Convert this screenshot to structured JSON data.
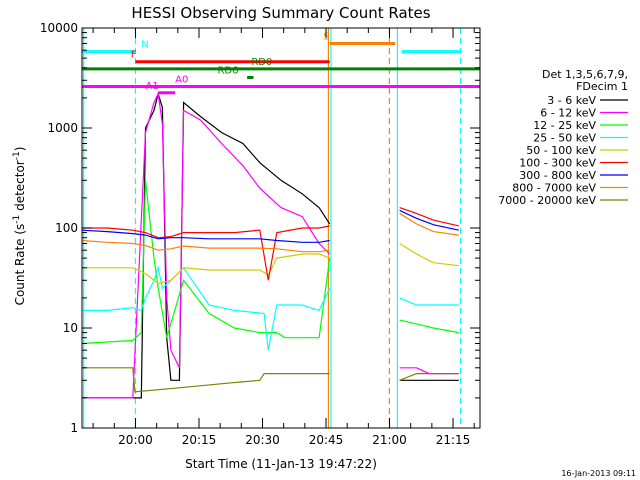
{
  "chart_data": {
    "type": "line",
    "title": "HESSI Observing Summary Count Rates",
    "xlabel": "Start Time (11-Jan-13 19:47:22)",
    "ylabel_main": "Count Rate (s",
    "ylabel_sup": "-1",
    "ylabel_mid": " detector",
    "ylabel_end": ")",
    "yscale": "log",
    "ylim": [
      1,
      10000
    ],
    "xlim_minutes_after_19_47_22": [
      0,
      94
    ],
    "x_ticks": [
      {
        "label": "20:00",
        "min": 12.63
      },
      {
        "label": "20:15",
        "min": 27.63
      },
      {
        "label": "20:30",
        "min": 42.63
      },
      {
        "label": "20:45",
        "min": 57.63
      },
      {
        "label": "21:00",
        "min": 72.63
      },
      {
        "label": "21:15",
        "min": 87.63
      }
    ],
    "y_ticks": [
      {
        "label": "1",
        "v": 1
      },
      {
        "label": "10",
        "v": 10
      },
      {
        "label": "100",
        "v": 100
      },
      {
        "label": "1000",
        "v": 1000
      },
      {
        "label": "10000",
        "v": 10000
      }
    ],
    "legend_header": [
      "Det 1,3,5,6,7,9,",
      "FDecim 1"
    ],
    "series": [
      {
        "name": "3 - 6 keV",
        "color": "#000000",
        "points": [
          [
            0,
            2
          ],
          [
            12,
            2
          ],
          [
            14,
            2
          ],
          [
            15,
            1000
          ],
          [
            17,
            1500
          ],
          [
            18,
            2200
          ],
          [
            19,
            1600
          ],
          [
            20,
            8
          ],
          [
            21,
            3
          ],
          [
            23,
            3
          ],
          [
            24,
            1800
          ],
          [
            28,
            1300
          ],
          [
            33,
            900
          ],
          [
            38,
            700
          ],
          [
            42,
            450
          ],
          [
            47,
            300
          ],
          [
            52,
            220
          ],
          [
            56,
            160
          ],
          [
            58.5,
            110
          ],
          [
            null,
            null
          ],
          [
            75,
            3
          ],
          [
            79,
            3
          ],
          [
            82,
            3
          ],
          [
            89,
            3
          ]
        ]
      },
      {
        "name": "6 - 12 keV",
        "color": "#ff00ff",
        "points": [
          [
            0,
            2
          ],
          [
            12,
            2
          ],
          [
            15,
            900
          ],
          [
            17,
            1800
          ],
          [
            18,
            2200
          ],
          [
            19,
            1100
          ],
          [
            20,
            20
          ],
          [
            21,
            6
          ],
          [
            23,
            4
          ],
          [
            24,
            1500
          ],
          [
            28,
            1200
          ],
          [
            33,
            700
          ],
          [
            38,
            420
          ],
          [
            42,
            250
          ],
          [
            47,
            160
          ],
          [
            52,
            130
          ],
          [
            56,
            70
          ],
          [
            58.5,
            55
          ],
          [
            null,
            null
          ],
          [
            75,
            4
          ],
          [
            79,
            4
          ],
          [
            82,
            3.5
          ],
          [
            89,
            3.5
          ]
        ]
      },
      {
        "name": "12 - 25 keV",
        "color": "#00ff00",
        "points": [
          [
            0,
            7
          ],
          [
            12,
            7.5
          ],
          [
            14,
            9
          ],
          [
            15,
            300
          ],
          [
            17,
            50
          ],
          [
            18,
            25
          ],
          [
            20,
            8
          ],
          [
            24,
            30
          ],
          [
            30,
            14
          ],
          [
            36,
            10
          ],
          [
            42,
            9
          ],
          [
            46,
            9
          ],
          [
            48,
            8
          ],
          [
            52,
            8
          ],
          [
            56,
            8
          ],
          [
            58.5,
            50
          ],
          [
            null,
            null
          ],
          [
            75,
            12
          ],
          [
            79,
            11
          ],
          [
            83,
            10
          ],
          [
            89,
            9
          ]
        ]
      },
      {
        "name": "25 - 50 keV",
        "color": "#00ffff",
        "points": [
          [
            0,
            15
          ],
          [
            6,
            15
          ],
          [
            12,
            16
          ],
          [
            14,
            15
          ],
          [
            15,
            20
          ],
          [
            17,
            30
          ],
          [
            18,
            40
          ],
          [
            19,
            25
          ],
          [
            21,
            30
          ],
          [
            24,
            40
          ],
          [
            30,
            17
          ],
          [
            36,
            15
          ],
          [
            43,
            14
          ],
          [
            44,
            6
          ],
          [
            46,
            17
          ],
          [
            52,
            17
          ],
          [
            56,
            15
          ],
          [
            58.5,
            25
          ],
          [
            null,
            null
          ],
          [
            75,
            20
          ],
          [
            79,
            17
          ],
          [
            83,
            17
          ],
          [
            89,
            17
          ]
        ]
      },
      {
        "name": "50 - 100 keV",
        "color": "#cccc00",
        "points": [
          [
            0,
            40
          ],
          [
            6,
            40
          ],
          [
            12,
            40
          ],
          [
            15,
            35
          ],
          [
            18,
            28
          ],
          [
            21,
            30
          ],
          [
            24,
            40
          ],
          [
            30,
            38
          ],
          [
            36,
            38
          ],
          [
            42,
            38
          ],
          [
            44,
            34
          ],
          [
            46,
            50
          ],
          [
            52,
            55
          ],
          [
            56,
            55
          ],
          [
            58.5,
            50
          ],
          [
            null,
            null
          ],
          [
            75,
            70
          ],
          [
            79,
            55
          ],
          [
            83,
            45
          ],
          [
            89,
            42
          ]
        ]
      },
      {
        "name": "100 - 300 keV",
        "color": "#ff0000",
        "points": [
          [
            0,
            100
          ],
          [
            6,
            100
          ],
          [
            12,
            95
          ],
          [
            15,
            90
          ],
          [
            18,
            80
          ],
          [
            21,
            82
          ],
          [
            24,
            90
          ],
          [
            30,
            90
          ],
          [
            36,
            90
          ],
          [
            42,
            95
          ],
          [
            44,
            30
          ],
          [
            46,
            90
          ],
          [
            52,
            100
          ],
          [
            56,
            100
          ],
          [
            58.5,
            105
          ],
          [
            null,
            null
          ],
          [
            75,
            160
          ],
          [
            79,
            140
          ],
          [
            83,
            120
          ],
          [
            89,
            105
          ]
        ]
      },
      {
        "name": "300 - 800 keV",
        "color": "#0000ff",
        "points": [
          [
            0,
            95
          ],
          [
            6,
            92
          ],
          [
            12,
            88
          ],
          [
            15,
            85
          ],
          [
            18,
            78
          ],
          [
            21,
            80
          ],
          [
            24,
            80
          ],
          [
            30,
            78
          ],
          [
            36,
            78
          ],
          [
            42,
            78
          ],
          [
            46,
            75
          ],
          [
            52,
            72
          ],
          [
            56,
            72
          ],
          [
            58.5,
            75
          ],
          [
            null,
            null
          ],
          [
            75,
            150
          ],
          [
            79,
            125
          ],
          [
            83,
            108
          ],
          [
            89,
            95
          ]
        ]
      },
      {
        "name": "800 - 7000 keV",
        "color": "#ff8000",
        "points": [
          [
            0,
            75
          ],
          [
            6,
            72
          ],
          [
            12,
            70
          ],
          [
            15,
            67
          ],
          [
            18,
            60
          ],
          [
            21,
            62
          ],
          [
            24,
            66
          ],
          [
            30,
            63
          ],
          [
            36,
            63
          ],
          [
            42,
            63
          ],
          [
            46,
            62
          ],
          [
            52,
            58
          ],
          [
            56,
            58
          ],
          [
            58.5,
            60
          ],
          [
            null,
            null
          ],
          [
            75,
            140
          ],
          [
            79,
            110
          ],
          [
            83,
            92
          ],
          [
            89,
            85
          ]
        ]
      },
      {
        "name": "7000 - 20000 keV",
        "color": "#808000",
        "points": [
          [
            0,
            4
          ],
          [
            10,
            4
          ],
          [
            12,
            4
          ],
          [
            12.5,
            2.3
          ],
          [
            22,
            2.5
          ],
          [
            34,
            2.8
          ],
          [
            42,
            3
          ],
          [
            43,
            3.5
          ],
          [
            56,
            3.5
          ],
          [
            58.5,
            3.5
          ],
          [
            null,
            null
          ],
          [
            75,
            3
          ],
          [
            79,
            3.5
          ],
          [
            83,
            3.5
          ],
          [
            89,
            3.5
          ]
        ]
      }
    ],
    "flag_bars": [
      {
        "label": "N",
        "color": "#00ffff",
        "color_label": "#00ffff",
        "segments": [
          [
            0,
            12.63
          ],
          [
            75.5,
            89.4
          ]
        ],
        "y": 5800,
        "label_at": 14
      },
      {
        "label": "F",
        "color": "#ff0000",
        "color_label": "#ff0000",
        "segments": [
          [
            12.63,
            58.5
          ]
        ],
        "y": 4600,
        "label_at": 11.5
      },
      {
        "label": "S",
        "color": "#ff8000",
        "color_label": "#ff8000",
        "segments": [
          [
            58.5,
            74
          ]
        ],
        "y": 7000,
        "label_at": 57
      },
      {
        "label": "RD0",
        "color": "#008000",
        "color_label": "#008000",
        "segments": [
          [
            0,
            94
          ]
        ],
        "y": 3900,
        "label_at": 40
      },
      {
        "label": "RD6",
        "color": "#008000",
        "color_label": "#008000",
        "segments": [
          [
            39,
            40.5
          ]
        ],
        "y": 3200,
        "label_at": 32
      },
      {
        "label": "A0",
        "color": "#ff00ff",
        "color_label": "#ff00ff",
        "segments": [
          [
            0,
            94
          ]
        ],
        "y": 2600,
        "label_at": 22
      },
      {
        "label": "A1",
        "color": "#ff00ff",
        "color_label": "#ff00ff",
        "segments": [
          [
            18,
            22
          ]
        ],
        "y": 2250,
        "label_at": 15
      }
    ],
    "vlines": [
      {
        "min": 12.63,
        "color": "#00ffff",
        "dash": true
      },
      {
        "min": 74.5,
        "color": "#00ffff",
        "dash": false
      },
      {
        "min": 89.4,
        "color": "#00ffff",
        "dash": true
      },
      {
        "min": 0.4,
        "color": "#00ffff",
        "dash": false
      },
      {
        "min": 58.2,
        "color": "#ff8000",
        "dash": false
      },
      {
        "min": 58.8,
        "color": "#00ffff",
        "dash": false
      },
      {
        "min": 72.6,
        "color": "#ff8000",
        "dash": true
      }
    ],
    "date_stamp": "16-Jan-2013 09:11"
  }
}
